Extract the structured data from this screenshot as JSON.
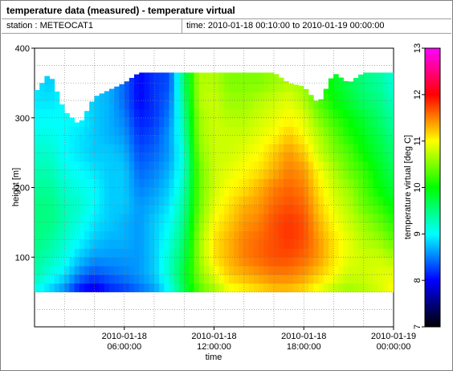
{
  "header": {
    "title": "temperature data (measured) - temperature virtual",
    "station": "station : METEOCAT1",
    "time_range": "time: 2010-01-18 00:10:00 to 2010-01-19 00:00:00"
  },
  "chart_data": {
    "type": "heatmap",
    "xlabel": "time",
    "ylabel": "height [m]",
    "colorbar_label": "temperature virtual [deg C]",
    "x_ticks": [
      {
        "hour": 6,
        "line1": "2010-01-18",
        "line2": "06:00:00"
      },
      {
        "hour": 12,
        "line1": "2010-01-18",
        "line2": "12:00:00"
      },
      {
        "hour": 18,
        "line1": "2010-01-18",
        "line2": "18:00:00"
      },
      {
        "hour": 24,
        "line1": "2010-01-19",
        "line2": "00:00:00"
      }
    ],
    "xlim_hours": [
      0,
      24
    ],
    "ylim": [
      0,
      400
    ],
    "y_ticks": [
      100,
      200,
      300,
      400
    ],
    "cbar_ticks": [
      7,
      8,
      9,
      10,
      11,
      12,
      13
    ],
    "cbar_range": [
      7,
      13
    ],
    "colormap": [
      "#000000",
      "#0000ff",
      "#00ffff",
      "#00ff00",
      "#ffff00",
      "#ff0000",
      "#ff00ff"
    ],
    "grid": true,
    "profile_bottom_m": 50,
    "profile_top_max_m": 365,
    "time_step_hours": 0.333,
    "height_bins_m": [
      50,
      75,
      100,
      125,
      150,
      175,
      200,
      225,
      250,
      275,
      300,
      325,
      350
    ],
    "columns": [
      {
        "hour": 0.17,
        "top": 340,
        "temps": [
          9.0,
          9.3,
          9.4,
          9.5,
          9.5,
          9.5,
          9.4,
          9.3,
          9.2,
          9.1,
          9.0,
          8.9,
          8.9
        ]
      },
      {
        "hour": 1.0,
        "top": 365,
        "temps": [
          8.8,
          9.1,
          9.3,
          9.4,
          9.5,
          9.5,
          9.4,
          9.3,
          9.2,
          9.1,
          9.0,
          8.9,
          8.8
        ]
      },
      {
        "hour": 2.0,
        "top": 310,
        "temps": [
          8.5,
          8.9,
          9.1,
          9.2,
          9.3,
          9.3,
          9.2,
          9.1,
          9.0,
          9.0,
          9.0,
          9.0,
          9.0
        ]
      },
      {
        "hour": 3.0,
        "top": 290,
        "temps": [
          8.0,
          8.5,
          8.8,
          9.0,
          9.1,
          9.2,
          9.1,
          9.0,
          8.9,
          8.9,
          9.0,
          9.0,
          9.0
        ]
      },
      {
        "hour": 4.0,
        "top": 330,
        "temps": [
          7.8,
          8.3,
          8.6,
          8.8,
          8.9,
          9.0,
          9.0,
          8.9,
          8.8,
          8.8,
          8.8,
          8.8,
          8.8
        ]
      },
      {
        "hour": 5.0,
        "top": 340,
        "temps": [
          8.1,
          8.4,
          8.6,
          8.7,
          8.8,
          8.8,
          8.8,
          8.8,
          8.8,
          8.7,
          8.7,
          8.7,
          8.7
        ]
      },
      {
        "hour": 6.0,
        "top": 350,
        "temps": [
          8.2,
          8.5,
          8.6,
          8.7,
          8.7,
          8.8,
          8.8,
          8.8,
          8.7,
          8.6,
          8.5,
          8.4,
          8.4
        ]
      },
      {
        "hour": 7.0,
        "top": 365,
        "temps": [
          8.4,
          8.6,
          8.6,
          8.6,
          8.6,
          8.6,
          8.5,
          8.4,
          8.3,
          8.2,
          8.1,
          8.0,
          8.0
        ]
      },
      {
        "hour": 8.0,
        "top": 365,
        "temps": [
          8.6,
          8.8,
          8.8,
          8.8,
          8.8,
          8.7,
          8.6,
          8.5,
          8.4,
          8.3,
          8.2,
          8.2,
          8.2
        ]
      },
      {
        "hour": 9.0,
        "top": 365,
        "temps": [
          9.0,
          9.2,
          9.2,
          9.1,
          9.0,
          8.9,
          8.8,
          8.7,
          8.6,
          8.6,
          8.5,
          8.4,
          8.3
        ]
      },
      {
        "hour": 10.0,
        "top": 365,
        "temps": [
          9.7,
          9.8,
          9.7,
          9.6,
          9.5,
          9.4,
          9.3,
          9.2,
          9.2,
          9.3,
          9.4,
          9.5,
          9.6
        ]
      },
      {
        "hour": 11.0,
        "top": 365,
        "temps": [
          10.3,
          10.5,
          10.6,
          10.6,
          10.5,
          10.4,
          10.4,
          10.4,
          10.5,
          10.6,
          10.6,
          10.7,
          10.7
        ]
      },
      {
        "hour": 12.0,
        "top": 365,
        "temps": [
          10.6,
          10.9,
          11.1,
          11.1,
          11.0,
          10.9,
          10.8,
          10.8,
          10.8,
          10.8,
          10.8,
          10.8,
          10.7
        ]
      },
      {
        "hour": 13.0,
        "top": 365,
        "temps": [
          10.9,
          11.2,
          11.3,
          11.3,
          11.2,
          11.1,
          11.0,
          10.9,
          10.8,
          10.8,
          10.7,
          10.6,
          10.5
        ]
      },
      {
        "hour": 14.0,
        "top": 365,
        "temps": [
          11.0,
          11.3,
          11.5,
          11.5,
          11.4,
          11.3,
          11.1,
          11.0,
          10.9,
          10.8,
          10.7,
          10.6,
          10.5
        ]
      },
      {
        "hour": 15.0,
        "top": 365,
        "temps": [
          11.1,
          11.4,
          11.6,
          11.6,
          11.5,
          11.4,
          11.3,
          11.1,
          11.0,
          10.9,
          10.8,
          10.7,
          10.5
        ]
      },
      {
        "hour": 16.0,
        "top": 365,
        "temps": [
          11.2,
          11.5,
          11.7,
          11.7,
          11.7,
          11.6,
          11.5,
          11.3,
          11.2,
          11.0,
          10.9,
          10.8,
          10.6
        ]
      },
      {
        "hour": 17.0,
        "top": 350,
        "temps": [
          11.2,
          11.5,
          11.7,
          11.8,
          11.8,
          11.7,
          11.6,
          11.5,
          11.4,
          11.2,
          11.0,
          10.9,
          10.7
        ]
      },
      {
        "hour": 18.0,
        "top": 345,
        "temps": [
          11.1,
          11.4,
          11.6,
          11.7,
          11.7,
          11.6,
          11.5,
          11.4,
          11.2,
          11.0,
          10.9,
          10.7,
          10.6
        ]
      },
      {
        "hour": 19.0,
        "top": 320,
        "temps": [
          10.9,
          11.2,
          11.4,
          11.4,
          11.3,
          11.2,
          11.1,
          11.0,
          10.8,
          10.7,
          10.5,
          10.3,
          10.2
        ]
      },
      {
        "hour": 20.0,
        "top": 365,
        "temps": [
          10.7,
          11.0,
          11.1,
          11.1,
          11.0,
          10.9,
          10.8,
          10.7,
          10.5,
          10.4,
          10.2,
          10.0,
          9.9
        ]
      },
      {
        "hour": 21.0,
        "top": 350,
        "temps": [
          10.6,
          10.8,
          10.9,
          10.9,
          10.8,
          10.7,
          10.6,
          10.4,
          10.3,
          10.1,
          10.0,
          9.8,
          9.7
        ]
      },
      {
        "hour": 22.0,
        "top": 365,
        "temps": [
          10.7,
          10.8,
          10.8,
          10.7,
          10.6,
          10.4,
          10.3,
          10.2,
          10.0,
          9.9,
          9.8,
          9.6,
          9.5
        ]
      },
      {
        "hour": 23.0,
        "top": 365,
        "temps": [
          10.8,
          10.9,
          10.8,
          10.6,
          10.4,
          10.2,
          10.0,
          9.9,
          9.8,
          9.7,
          9.6,
          9.5,
          9.4
        ]
      },
      {
        "hour": 23.8,
        "top": 365,
        "temps": [
          11.0,
          10.9,
          10.7,
          10.4,
          10.2,
          10.0,
          9.8,
          9.7,
          9.6,
          9.5,
          9.4,
          9.3,
          9.2
        ]
      }
    ]
  }
}
